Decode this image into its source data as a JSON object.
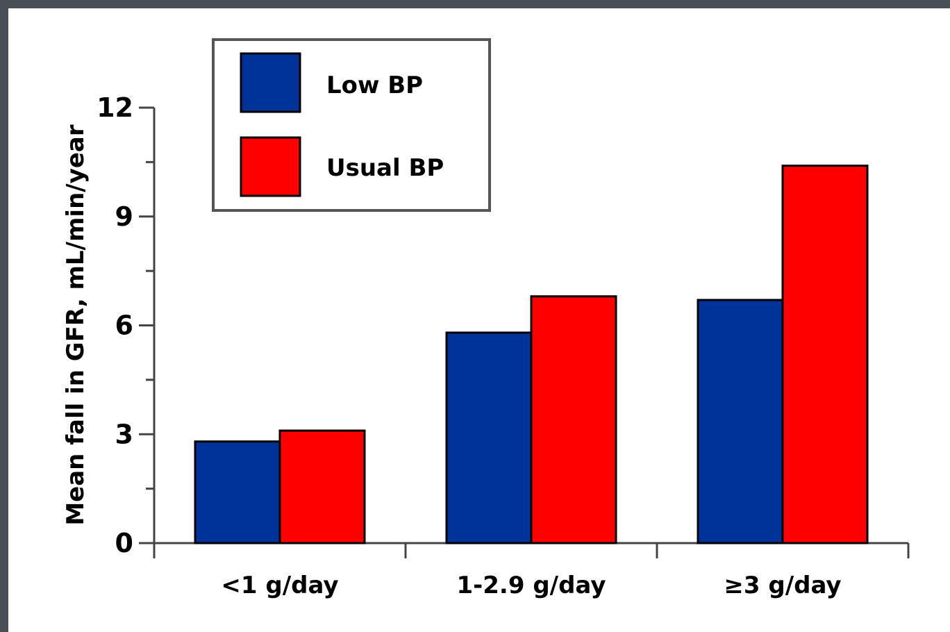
{
  "chart_data": {
    "type": "bar",
    "categories": [
      "<1 g/day",
      "1-2.9 g/day",
      "≥3 g/day"
    ],
    "series": [
      {
        "name": "Low BP",
        "values": [
          2.8,
          5.8,
          6.7
        ],
        "color": "#003399"
      },
      {
        "name": "Usual BP",
        "values": [
          3.1,
          6.8,
          10.4
        ],
        "color": "#ff0000"
      }
    ],
    "ylabel": "Mean fall in GFR, mL/min/year",
    "xlabel": "",
    "ylim": [
      0,
      12
    ],
    "yticks": [
      0,
      3,
      6,
      9,
      12
    ],
    "legend_position": "top-left",
    "grid": false
  }
}
